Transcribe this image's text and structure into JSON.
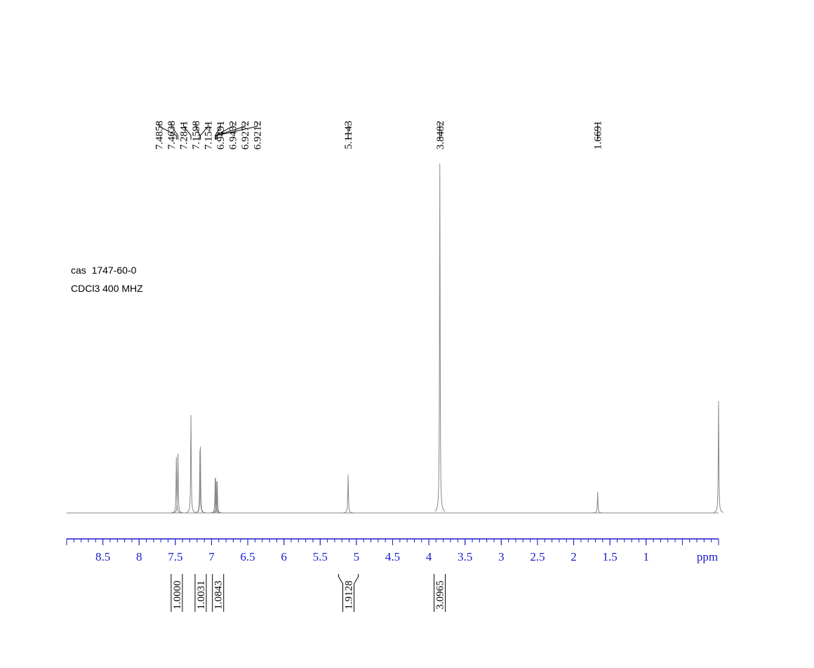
{
  "chart_data": {
    "type": "nmr",
    "annotations": [
      "cas  1747-60-0",
      "CDCl3 400 MHZ"
    ],
    "x_label": "ppm",
    "xlim": [
      9.0,
      0.0
    ],
    "xticks": [
      8.5,
      8.0,
      7.5,
      7.0,
      6.5,
      6.0,
      5.5,
      5.0,
      4.5,
      4.0,
      3.5,
      3.0,
      2.5,
      2.0,
      1.5,
      1.0
    ],
    "ylim": [
      0,
      100
    ],
    "color": "#888888",
    "axis_color": "#1a1acc",
    "peaks": {
      "x": [
        7.4858,
        7.4638,
        7.2841,
        7.1598,
        7.1541,
        6.9491,
        6.9432,
        6.9272,
        6.9212,
        5.1143,
        3.8482,
        1.6691,
        0.0
      ],
      "values": [
        16,
        17,
        28,
        18,
        19,
        10,
        10,
        9,
        9,
        11,
        100,
        6,
        32
      ]
    },
    "peak_labels": [
      7.4858,
      7.4638,
      7.2841,
      7.1598,
      7.1541,
      6.9491,
      6.9432,
      6.9272,
      6.9212,
      5.1143,
      3.8482,
      1.6691
    ],
    "integrals": {
      "x": [
        7.48,
        7.15,
        6.91,
        5.11,
        3.85
      ],
      "values": [
        1.0,
        1.0031,
        1.0843,
        1.9128,
        3.0965
      ],
      "value_labels": [
        "1.0000",
        "1.0031",
        "1.0843",
        "1.9128",
        "3.0965"
      ]
    }
  }
}
